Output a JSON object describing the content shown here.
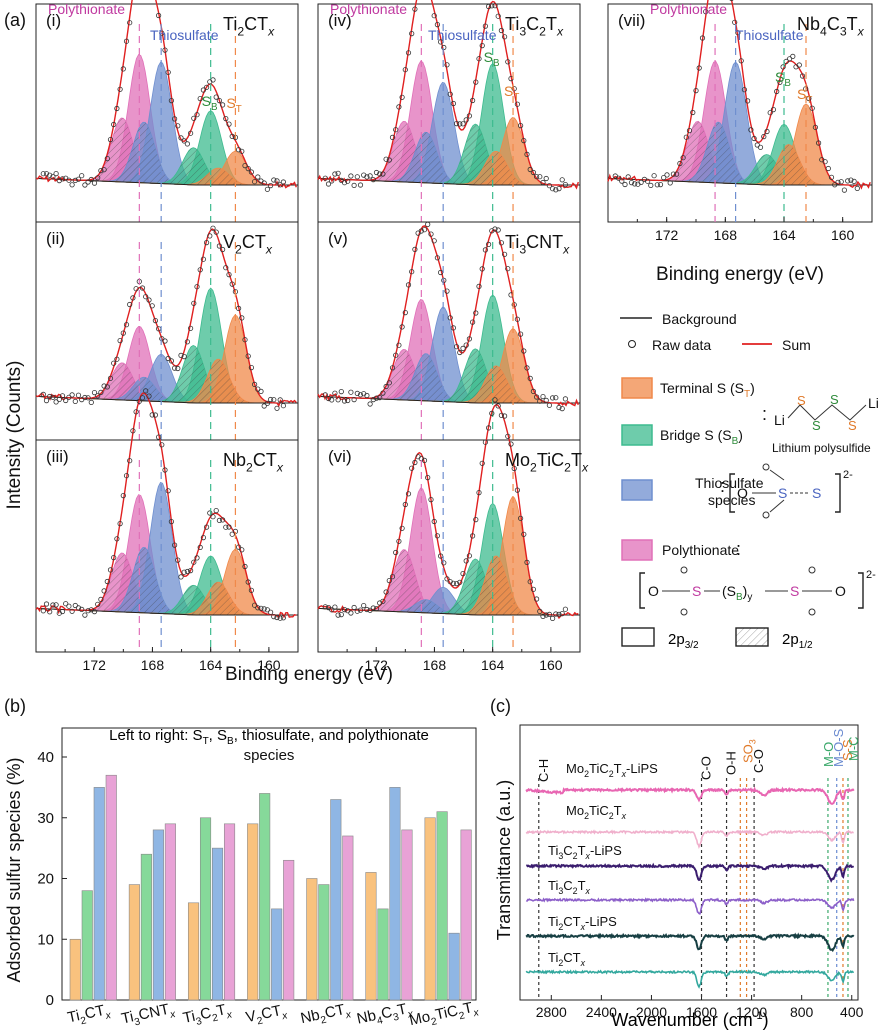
{
  "colors": {
    "terminal": "#f0894a",
    "bridge": "#3dbb8f",
    "thiosulfate": "#6f8fcf",
    "polythionate": "#e070b8",
    "sum": "#e02020",
    "terminal_bar": "#f9c27e",
    "bridge_bar": "#86d99a",
    "thio_bar": "#8fb6e4",
    "poly_bar": "#e8a2d6",
    "sb_label": "#2e8b3a",
    "st_label": "#e07a2a",
    "thio_label": "#4a64c0",
    "poly_label": "#c03aa0",
    "mo_curve": "#e866b2",
    "mo_bare": "#f0b0cc",
    "ti3_lips": "#3a1d6e",
    "ti3_bare": "#8c5fc9",
    "ti2_lips": "#173f43",
    "ti2_bare": "#33a89e"
  },
  "panel_a": {
    "label": "(a)",
    "ylabel": "Intensity (Counts)",
    "xlabel": "Binding energy (eV)",
    "xlabel_vii": "Binding energy (eV)",
    "xticks": [
      "172",
      "168",
      "164",
      "160"
    ],
    "peak_labels": {
      "poly": "Polythionate",
      "thio": "Thiosulfate",
      "sb": "S",
      "sb_sub": "B",
      "st": "S",
      "st_sub": "T"
    },
    "subpanels": [
      {
        "id": "i",
        "roman": "(i)",
        "base": "Ti",
        "s1": "2",
        "mid": "CT",
        "s2": "",
        "tail": "",
        "suffix": "x",
        "amps": {
          "poly": 0.95,
          "thio": 0.9,
          "sb": 0.55,
          "st": 0.25
        },
        "peaks": {
          "poly": 168.9,
          "thio": 167.4,
          "sb": 164.0,
          "st": 162.3
        }
      },
      {
        "id": "ii",
        "roman": "(ii)",
        "base": "V",
        "s1": "2",
        "mid": "CT",
        "s2": "",
        "tail": "",
        "suffix": "x",
        "amps": {
          "poly": 0.55,
          "thio": 0.35,
          "sb": 0.85,
          "st": 0.65
        },
        "peaks": {
          "poly": 168.9,
          "thio": 167.4,
          "sb": 164.0,
          "st": 162.3
        }
      },
      {
        "id": "iii",
        "roman": "(iii)",
        "base": "Nb",
        "s1": "2",
        "mid": "CT",
        "s2": "",
        "tail": "",
        "suffix": "x",
        "amps": {
          "poly": 0.9,
          "thio": 1.0,
          "sb": 0.45,
          "st": 0.5
        },
        "peaks": {
          "poly": 168.9,
          "thio": 167.4,
          "sb": 164.0,
          "st": 162.3
        }
      },
      {
        "id": "iv",
        "roman": "(iv)",
        "base": "Ti",
        "s1": "3",
        "mid": "C",
        "s2": "2",
        "tail": "T",
        "suffix": "x",
        "amps": {
          "poly": 0.9,
          "thio": 0.75,
          "sb": 0.9,
          "st": 0.5
        },
        "peaks": {
          "poly": 168.9,
          "thio": 167.4,
          "sb": 164.0,
          "st": 162.6
        }
      },
      {
        "id": "v",
        "roman": "(v)",
        "base": "Ti",
        "s1": "3",
        "mid": "CNT",
        "s2": "",
        "tail": "",
        "suffix": "x",
        "amps": {
          "poly": 0.75,
          "thio": 0.7,
          "sb": 0.8,
          "st": 0.55
        },
        "peaks": {
          "poly": 168.9,
          "thio": 167.4,
          "sb": 164.0,
          "st": 162.6
        }
      },
      {
        "id": "vi",
        "roman": "(vi)",
        "base": "Mo",
        "s1": "2",
        "mid": "TiC",
        "s2": "2",
        "tail": "T",
        "suffix": "x",
        "amps": {
          "poly": 0.95,
          "thio": 0.2,
          "sb": 0.85,
          "st": 0.9
        },
        "peaks": {
          "poly": 168.9,
          "thio": 167.4,
          "sb": 164.0,
          "st": 162.6
        }
      },
      {
        "id": "vii",
        "roman": "(vii)",
        "base": "Nb",
        "s1": "4",
        "mid": "C",
        "s2": "3",
        "tail": "T",
        "suffix": "x",
        "amps": {
          "poly": 0.9,
          "thio": 0.9,
          "sb": 0.45,
          "st": 0.6
        },
        "peaks": {
          "poly": 168.7,
          "thio": 167.3,
          "sb": 164.0,
          "st": 162.5
        }
      }
    ]
  },
  "legend": {
    "background": "Background",
    "raw": "Raw data",
    "sum": "Sum",
    "terminal": "Terminal S (S",
    "terminal_sub": "T",
    "terminal_close": ")",
    "bridge": "Bridge S (S",
    "bridge_sub": "B",
    "bridge_close": ")",
    "thio_l1": "Thiosulfate",
    "thio_l2": "species",
    "poly": "Polythionate",
    "lips_caption": "Lithium polysulfide",
    "p32": "2p",
    "p32_sub": "3/2",
    "p12": "2p",
    "p12_sub": "1/2",
    "colon": ":",
    "li": "Li",
    "sulfur": "S",
    "oxygen": "O",
    "charge": "2-",
    "sb_group": "(S",
    "sb_group_sub": "B",
    "sb_group_close": ")",
    "y_sub": "y"
  },
  "chart_data": [
    {
      "type": "bar",
      "panel": "(b)",
      "title": "Left to right: S",
      "title_sub1": "T",
      "title_mid": ", S",
      "title_sub2": "B",
      "title_end": ", thiosulfate, and polythionate",
      "title_line2": "species",
      "ylabel": "Adsorbed sulfur species (%)",
      "ylim": [
        0,
        40
      ],
      "yticks": [
        "0",
        "10",
        "20",
        "30",
        "40"
      ],
      "categories": [
        {
          "base": "Ti",
          "s1": "2",
          "mid": "CT",
          "s2": "",
          "tail": "",
          "suffix": "x"
        },
        {
          "base": "Ti",
          "s1": "3",
          "mid": "CNT",
          "s2": "",
          "tail": "",
          "suffix": "x"
        },
        {
          "base": "Ti",
          "s1": "3",
          "mid": "C",
          "s2": "2",
          "tail": "T",
          "suffix": "x"
        },
        {
          "base": "V",
          "s1": "2",
          "mid": "CT",
          "s2": "",
          "tail": "",
          "suffix": "x"
        },
        {
          "base": "Nb",
          "s1": "2",
          "mid": "CT",
          "s2": "",
          "tail": "",
          "suffix": "x"
        },
        {
          "base": "Nb",
          "s1": "4",
          "mid": "C",
          "s2": "3",
          "tail": "T",
          "suffix": "x"
        },
        {
          "base": "Mo",
          "s1": "2",
          "mid": "TiC",
          "s2": "2",
          "tail": "T",
          "suffix": "x"
        }
      ],
      "series": [
        {
          "name": "Terminal S",
          "values": [
            10,
            19,
            16,
            29,
            20,
            21,
            30
          ]
        },
        {
          "name": "Bridge S",
          "values": [
            18,
            24,
            30,
            34,
            19,
            15,
            31
          ]
        },
        {
          "name": "Thiosulfate",
          "values": [
            35,
            28,
            25,
            15,
            33,
            35,
            11
          ]
        },
        {
          "name": "Polythionate",
          "values": [
            37,
            29,
            29,
            23,
            27,
            28,
            28
          ]
        }
      ]
    },
    {
      "type": "line",
      "panel": "(c)",
      "ylabel": "Transmittance (a.u.)",
      "xlabel": "Wavenumber (cm",
      "xlabel_sup": "-1",
      "xlabel_close": ")",
      "xlim": [
        3050,
        350
      ],
      "xticks": [
        "2800",
        "2400",
        "2000",
        "1600",
        "1200",
        "800",
        "400"
      ],
      "bond_labels": {
        "ch": "C-H",
        "co": "C-O",
        "oh": "O-H",
        "co2": "C-O",
        "so3": "SO",
        "so3_sub": "3",
        "mo": "M-O",
        "mos": "M-O-S",
        "ss": "S-S",
        "mc": "M-C"
      },
      "series": [
        {
          "name": "Mo2TiC2Tx-LiPS",
          "label": {
            "base": "Mo",
            "s1": "2",
            "mid": "TiC",
            "s2": "2",
            "tail": "T",
            "suffix": "x",
            "extra": "-LiPS"
          }
        },
        {
          "name": "Mo2TiC2Tx",
          "label": {
            "base": "Mo",
            "s1": "2",
            "mid": "TiC",
            "s2": "2",
            "tail": "T",
            "suffix": "x",
            "extra": ""
          }
        },
        {
          "name": "Ti3C2Tx-LiPS",
          "label": {
            "base": "Ti",
            "s1": "3",
            "mid": "C",
            "s2": "2",
            "tail": "T",
            "suffix": "x",
            "extra": "-LiPS"
          }
        },
        {
          "name": "Ti3C2Tx",
          "label": {
            "base": "Ti",
            "s1": "3",
            "mid": "C",
            "s2": "2",
            "tail": "T",
            "suffix": "x",
            "extra": ""
          }
        },
        {
          "name": "Ti2CTx-LiPS",
          "label": {
            "base": "Ti",
            "s1": "2",
            "mid": "CT",
            "s2": "",
            "tail": "",
            "suffix": "x",
            "extra": "-LiPS"
          }
        },
        {
          "name": "Ti2CTx",
          "label": {
            "base": "Ti",
            "s1": "2",
            "mid": "CT",
            "s2": "",
            "tail": "",
            "suffix": "x",
            "extra": ""
          }
        }
      ],
      "markers": {
        "ch": 2900,
        "co": 1600,
        "oh": 1400,
        "so3a": 1290,
        "so3b": 1240,
        "co2": 1180,
        "mo": 590,
        "mos": 520,
        "ss": 470,
        "mc": 430
      }
    }
  ]
}
